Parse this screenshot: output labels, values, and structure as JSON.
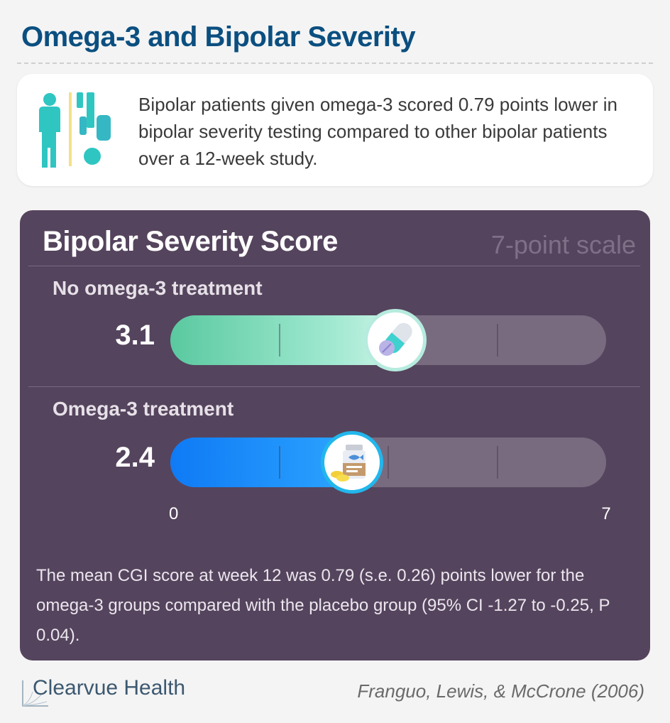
{
  "header": {
    "title": "Omega-3 and Bipolar Severity"
  },
  "summary": {
    "icon": "people-icon",
    "text": "Bipolar patients given omega-3 scored 0.79 points lower in bipolar severity testing compared to other bipolar patients over a 12-week study."
  },
  "chart_data": {
    "type": "bar",
    "orientation": "horizontal",
    "title": "Bipolar Severity Score",
    "subtitle": "7-point scale",
    "xlim": [
      0,
      7
    ],
    "tick_labels": [
      "0",
      "7"
    ],
    "gridlines": [
      1.75,
      3.5,
      5.25
    ],
    "categories": [
      "No omega-3 treatment",
      "Omega-3 treatment"
    ],
    "values": [
      3.1,
      2.4
    ],
    "value_labels": [
      "3.1",
      "2.4"
    ],
    "colors": [
      "#5ac9a0",
      "#1a8cff"
    ],
    "markers": [
      "pill-capsule-icon",
      "fish-oil-bottle-icon"
    ],
    "footnote": "The mean CGI score at week 12 was 0.79 (s.e. 0.26) points lower for the omega-3 groups compared with the placebo group (95% CI -1.27 to -0.25, P 0.04)."
  },
  "footer": {
    "brand": "Clearvue Health",
    "citation": "Franguo, Lewis, & McCrone (2006)"
  }
}
